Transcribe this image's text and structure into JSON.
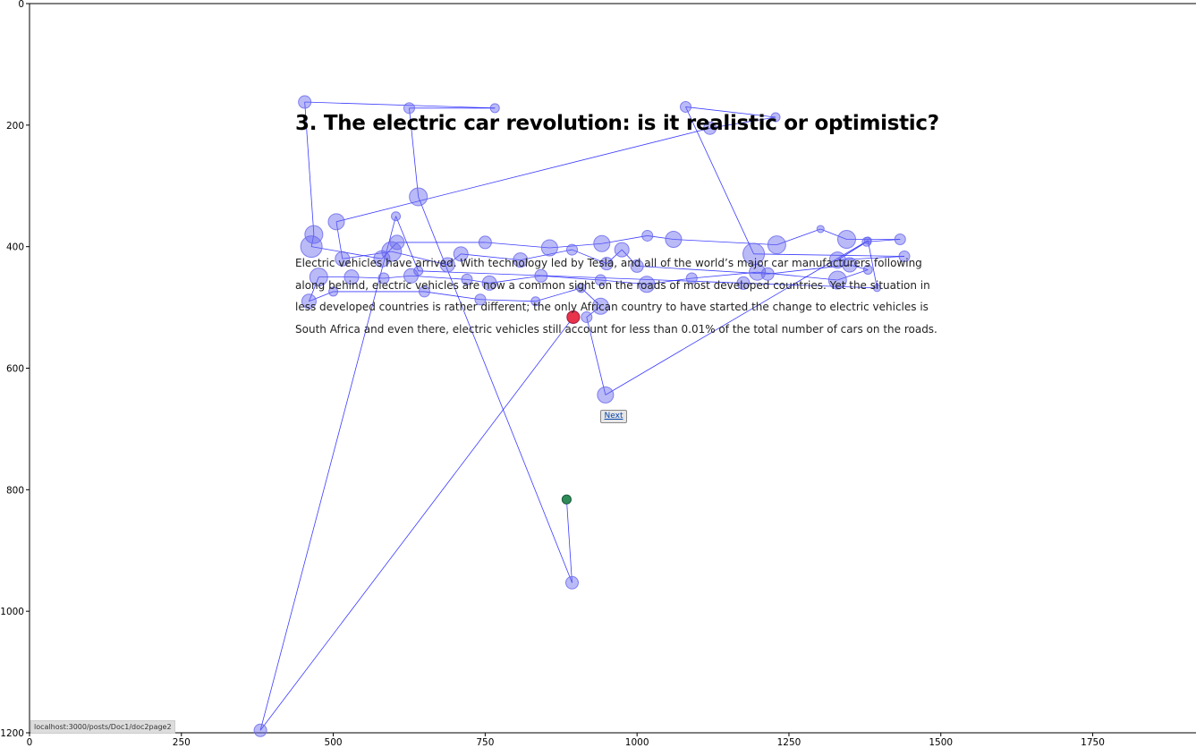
{
  "page": {
    "heading": "3. The electric car revolution: is it realistic or optimistic?",
    "paragraph": "Electric vehicles have arrived. With technology led by Tesla, and all of the world’s major car manufacturers following along behind, electric vehicles are now a common sight on the roads of most developed countries. Yet the situation in less developed countries is rather different; the only African country to have started the change to electric vehicles is South Africa and even there, electric vehicles still account for less than 0.01% of the total number of cars on the roads.",
    "next_label": "Next",
    "status_url": "localhost:3000/posts/Doc1/doc2page2"
  },
  "colors": {
    "fixation": "#6666ee",
    "scanpath": "#1a1aff",
    "start": "#2e8b57",
    "end": "#e8334a"
  },
  "chart_data": {
    "type": "scatter",
    "title": "",
    "xlabel": "",
    "ylabel": "",
    "xlim": [
      0,
      1920
    ],
    "ylim": [
      1200,
      0
    ],
    "xticks": [
      0,
      250,
      500,
      750,
      1000,
      1250,
      1500,
      1750
    ],
    "yticks": [
      0,
      200,
      400,
      600,
      800,
      1000,
      1200
    ],
    "series": [
      {
        "points": [
          {
            "x": 884,
            "y": 816,
            "r": 5
          },
          {
            "x": 893,
            "y": 953,
            "r": 7
          },
          {
            "x": 640,
            "y": 318,
            "r": 10
          },
          {
            "x": 625,
            "y": 172,
            "r": 6
          },
          {
            "x": 766,
            "y": 172,
            "r": 5
          },
          {
            "x": 453,
            "y": 162,
            "r": 7
          },
          {
            "x": 468,
            "y": 380,
            "r": 10
          },
          {
            "x": 464,
            "y": 400,
            "r": 12
          },
          {
            "x": 580,
            "y": 420,
            "r": 9
          },
          {
            "x": 605,
            "y": 393,
            "r": 8
          },
          {
            "x": 750,
            "y": 393,
            "r": 7
          },
          {
            "x": 856,
            "y": 402,
            "r": 9
          },
          {
            "x": 942,
            "y": 395,
            "r": 9
          },
          {
            "x": 1017,
            "y": 382,
            "r": 6
          },
          {
            "x": 1060,
            "y": 388,
            "r": 9
          },
          {
            "x": 1230,
            "y": 397,
            "r": 10
          },
          {
            "x": 1302,
            "y": 371,
            "r": 4
          },
          {
            "x": 1345,
            "y": 388,
            "r": 10
          },
          {
            "x": 1433,
            "y": 388,
            "r": 6
          },
          {
            "x": 1378,
            "y": 392,
            "r": 5
          },
          {
            "x": 1330,
            "y": 422,
            "r": 9
          },
          {
            "x": 1440,
            "y": 416,
            "r": 6
          },
          {
            "x": 1192,
            "y": 412,
            "r": 12
          },
          {
            "x": 1080,
            "y": 170,
            "r": 6
          },
          {
            "x": 1228,
            "y": 187,
            "r": 5
          },
          {
            "x": 1120,
            "y": 205,
            "r": 7
          },
          {
            "x": 505,
            "y": 359,
            "r": 9
          },
          {
            "x": 515,
            "y": 420,
            "r": 8
          },
          {
            "x": 596,
            "y": 408,
            "r": 11
          },
          {
            "x": 688,
            "y": 430,
            "r": 8
          },
          {
            "x": 710,
            "y": 412,
            "r": 8
          },
          {
            "x": 808,
            "y": 422,
            "r": 8
          },
          {
            "x": 893,
            "y": 405,
            "r": 6
          },
          {
            "x": 950,
            "y": 428,
            "r": 7
          },
          {
            "x": 975,
            "y": 405,
            "r": 8
          },
          {
            "x": 1000,
            "y": 432,
            "r": 7
          },
          {
            "x": 1215,
            "y": 445,
            "r": 7
          },
          {
            "x": 1350,
            "y": 430,
            "r": 8
          },
          {
            "x": 1380,
            "y": 438,
            "r": 5
          },
          {
            "x": 1330,
            "y": 455,
            "r": 10
          },
          {
            "x": 1198,
            "y": 442,
            "r": 9
          },
          {
            "x": 1090,
            "y": 452,
            "r": 6
          },
          {
            "x": 1016,
            "y": 462,
            "r": 9
          },
          {
            "x": 940,
            "y": 455,
            "r": 6
          },
          {
            "x": 842,
            "y": 448,
            "r": 7
          },
          {
            "x": 757,
            "y": 460,
            "r": 8
          },
          {
            "x": 720,
            "y": 454,
            "r": 6
          },
          {
            "x": 628,
            "y": 448,
            "r": 8
          },
          {
            "x": 583,
            "y": 452,
            "r": 6
          },
          {
            "x": 530,
            "y": 450,
            "r": 8
          },
          {
            "x": 476,
            "y": 450,
            "r": 10
          },
          {
            "x": 460,
            "y": 490,
            "r": 8
          },
          {
            "x": 500,
            "y": 474,
            "r": 5
          },
          {
            "x": 650,
            "y": 474,
            "r": 6
          },
          {
            "x": 742,
            "y": 487,
            "r": 6
          },
          {
            "x": 833,
            "y": 490,
            "r": 5
          },
          {
            "x": 908,
            "y": 468,
            "r": 5
          },
          {
            "x": 940,
            "y": 498,
            "r": 9
          },
          {
            "x": 917,
            "y": 516,
            "r": 6
          },
          {
            "x": 948,
            "y": 644,
            "r": 9
          },
          {
            "x": 1380,
            "y": 390,
            "r": 4
          },
          {
            "x": 1395,
            "y": 468,
            "r": 4
          },
          {
            "x": 1175,
            "y": 460,
            "r": 7
          },
          {
            "x": 640,
            "y": 440,
            "r": 5
          },
          {
            "x": 603,
            "y": 350,
            "r": 5
          },
          {
            "x": 380,
            "y": 1196,
            "r": 7
          },
          {
            "x": 895,
            "y": 516,
            "r": 7
          }
        ]
      }
    ],
    "start_point": {
      "x": 884,
      "y": 816
    },
    "end_point": {
      "x": 895,
      "y": 516
    }
  }
}
